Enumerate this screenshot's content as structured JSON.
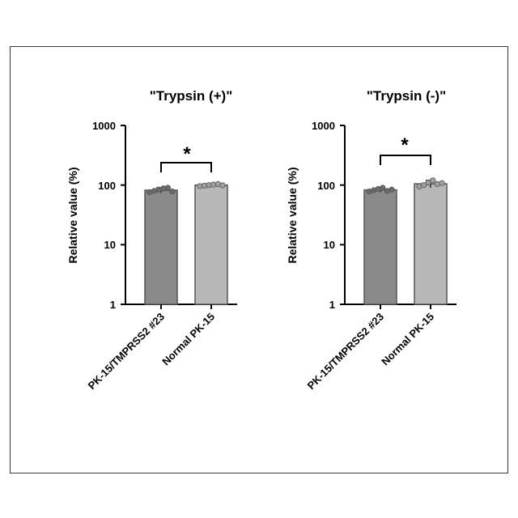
{
  "chart_data": [
    {
      "type": "bar",
      "title": "\"Trypsin (+)\"",
      "ylabel": "Relative value (%)",
      "xlabel": "",
      "yscale": "log",
      "ylim": [
        1,
        1000
      ],
      "yticks": [
        "1",
        "10",
        "100",
        "1000"
      ],
      "categories": [
        "PK-15/TMPRSS2 #23",
        "Normal PK-15"
      ],
      "values": [
        82,
        100
      ],
      "errors": [
        8,
        5
      ],
      "points": [
        [
          76,
          80,
          84,
          88,
          90,
          78
        ],
        [
          96,
          98,
          100,
          102,
          104,
          99
        ]
      ],
      "bar_colors": [
        "#8a8a8a",
        "#b8b8b8"
      ],
      "significance": "*"
    },
    {
      "type": "bar",
      "title": "\"Trypsin (-)\"",
      "ylabel": "Relative value (%)",
      "xlabel": "",
      "yscale": "log",
      "ylim": [
        1,
        1000
      ],
      "yticks": [
        "1",
        "10",
        "100",
        "1000"
      ],
      "categories": [
        "PK-15/TMPRSS2 #23",
        "Normal PK-15"
      ],
      "values": [
        83,
        105
      ],
      "errors": [
        7,
        15
      ],
      "points": [
        [
          78,
          82,
          86,
          90,
          80,
          84
        ],
        [
          95,
          100,
          110,
          120,
          104,
          108
        ]
      ],
      "bar_colors": [
        "#8a8a8a",
        "#b8b8b8"
      ],
      "significance": "*"
    }
  ]
}
